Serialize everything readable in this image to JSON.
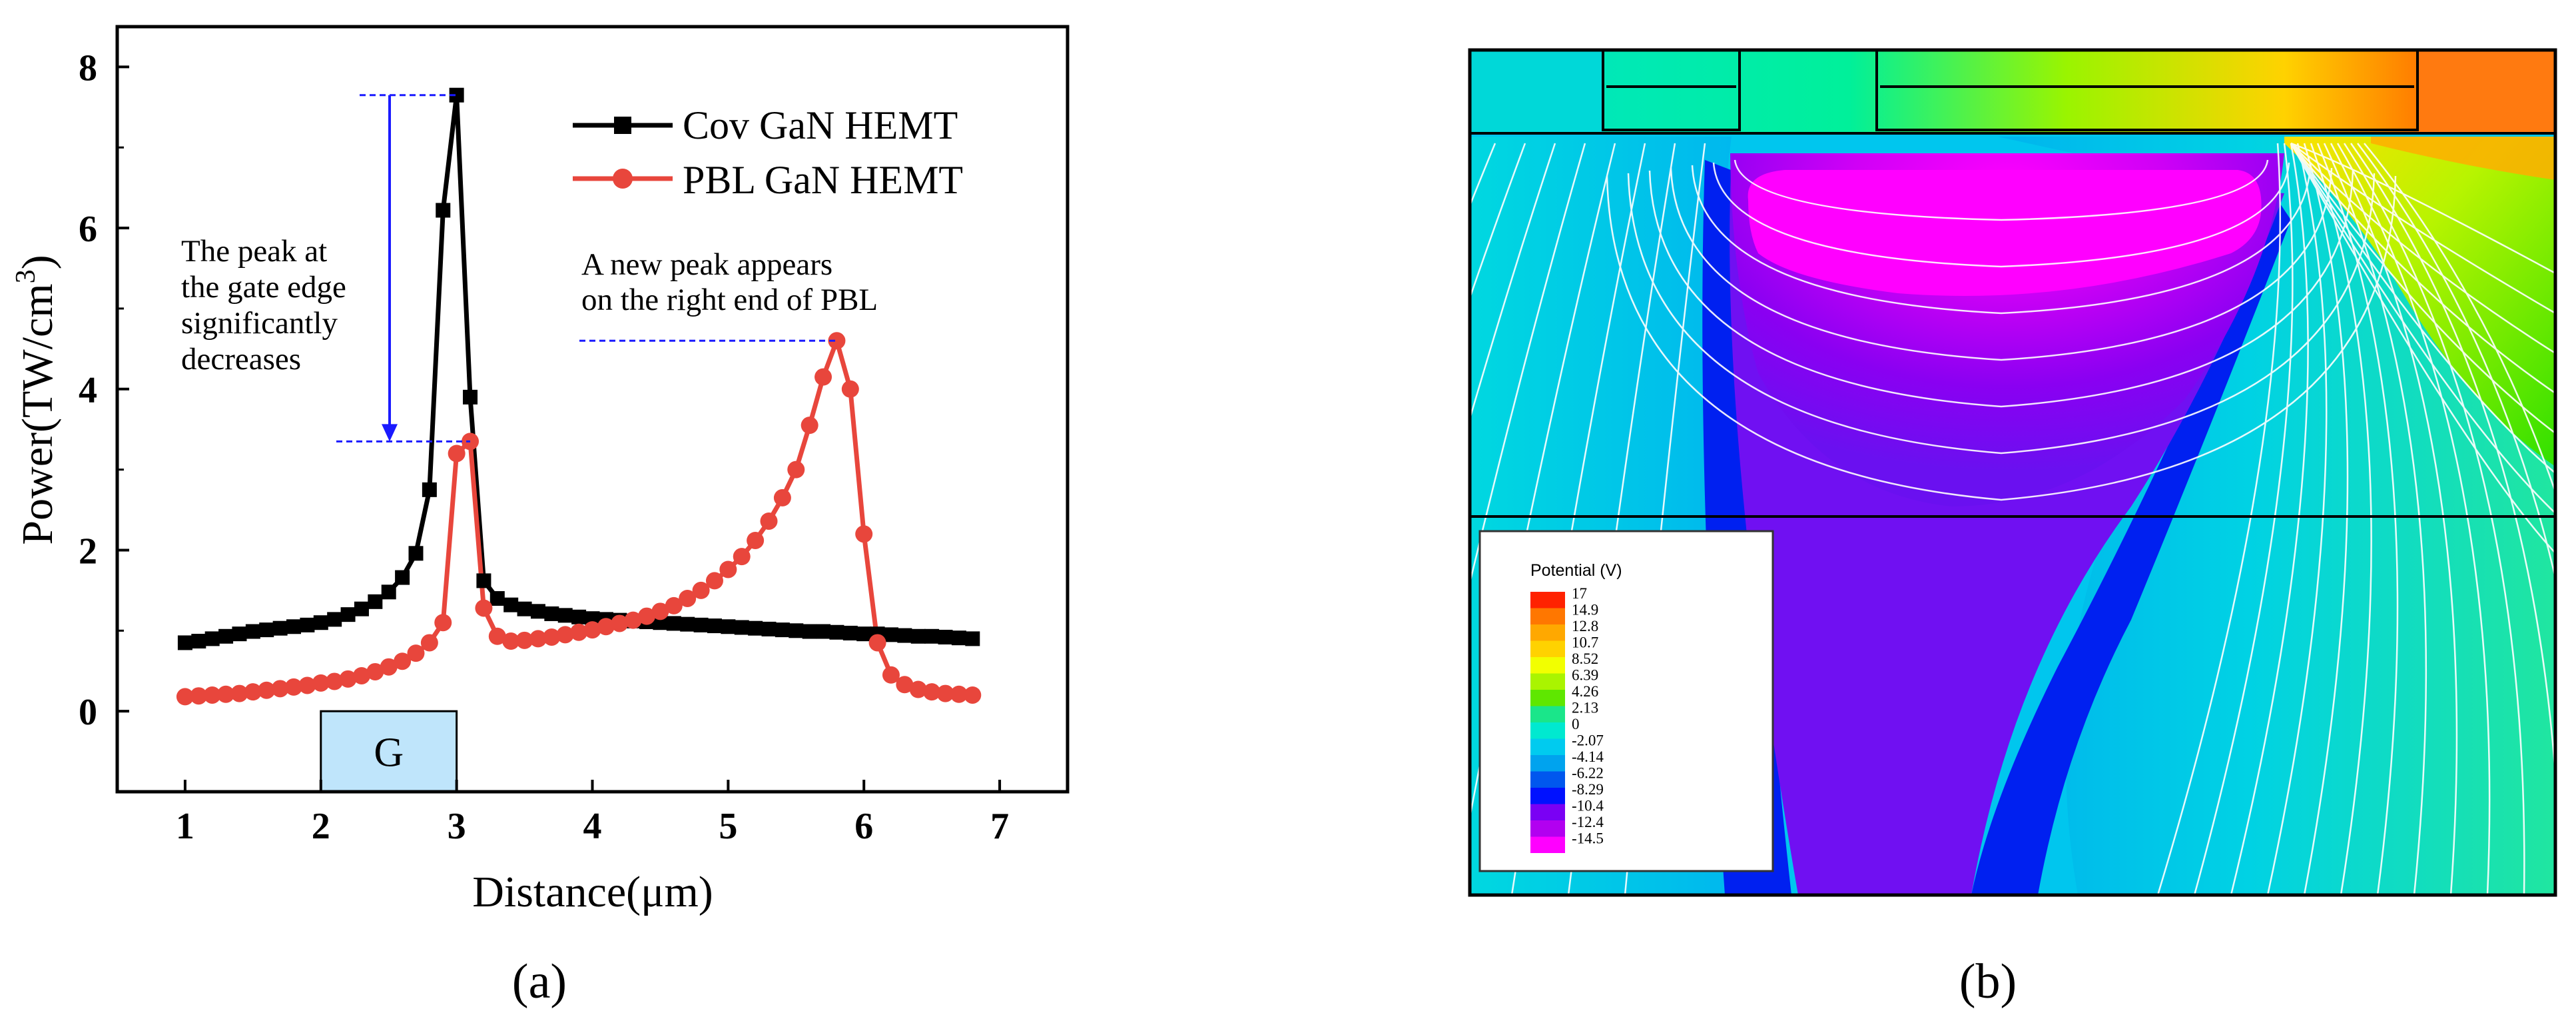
{
  "chart_data": [
    {
      "type": "line",
      "panel_label": "(a)",
      "xlabel": "Distance(μm)",
      "ylabel": "Power(TW/cm³)",
      "ylabel_main": "Power(TW/cm",
      "ylabel_sup": "3",
      "ylabel_close": ")",
      "xlim": [
        0.5,
        7.5
      ],
      "ylim": [
        -1,
        8.5
      ],
      "x_ticks": [
        1,
        2,
        3,
        4,
        5,
        6,
        7
      ],
      "y_ticks": [
        0,
        2,
        4,
        6,
        8
      ],
      "legend_position": "top-right",
      "gate_box": {
        "label": "G",
        "x_start": 2.0,
        "x_end": 3.0,
        "y_bottom": -1.0,
        "y_top": 0.0,
        "fill": "#bfe5fb"
      },
      "series": [
        {
          "name": "Cov GaN HEMT",
          "color": "#000000",
          "marker": "square",
          "x": [
            1.0,
            1.1,
            1.2,
            1.3,
            1.4,
            1.5,
            1.6,
            1.7,
            1.8,
            1.9,
            2.0,
            2.1,
            2.2,
            2.3,
            2.4,
            2.5,
            2.6,
            2.7,
            2.8,
            2.9,
            3.0,
            3.1,
            3.2,
            3.3,
            3.4,
            3.5,
            3.6,
            3.7,
            3.8,
            3.9,
            4.0,
            4.1,
            4.2,
            4.3,
            4.4,
            4.5,
            4.6,
            4.7,
            4.8,
            4.9,
            5.0,
            5.1,
            5.2,
            5.3,
            5.4,
            5.5,
            5.6,
            5.7,
            5.8,
            5.9,
            6.0,
            6.1,
            6.2,
            6.3,
            6.4,
            6.5,
            6.6,
            6.7,
            6.8
          ],
          "values": [
            0.85,
            0.87,
            0.9,
            0.93,
            0.96,
            0.99,
            1.01,
            1.03,
            1.05,
            1.07,
            1.1,
            1.14,
            1.2,
            1.27,
            1.36,
            1.48,
            1.66,
            1.96,
            2.75,
            6.22,
            7.65,
            3.9,
            1.62,
            1.4,
            1.32,
            1.27,
            1.24,
            1.21,
            1.19,
            1.17,
            1.15,
            1.14,
            1.13,
            1.12,
            1.11,
            1.1,
            1.09,
            1.08,
            1.07,
            1.06,
            1.05,
            1.04,
            1.03,
            1.02,
            1.01,
            1.0,
            0.99,
            0.99,
            0.98,
            0.97,
            0.96,
            0.96,
            0.95,
            0.94,
            0.93,
            0.93,
            0.92,
            0.91,
            0.9
          ]
        },
        {
          "name": "PBL GaN HEMT",
          "color": "#e8463c",
          "marker": "circle",
          "x": [
            1.0,
            1.1,
            1.2,
            1.3,
            1.4,
            1.5,
            1.6,
            1.7,
            1.8,
            1.9,
            2.0,
            2.1,
            2.2,
            2.3,
            2.4,
            2.5,
            2.6,
            2.7,
            2.8,
            2.9,
            3.0,
            3.1,
            3.2,
            3.3,
            3.4,
            3.5,
            3.6,
            3.7,
            3.8,
            3.9,
            4.0,
            4.1,
            4.2,
            4.3,
            4.4,
            4.5,
            4.6,
            4.7,
            4.8,
            4.9,
            5.0,
            5.1,
            5.2,
            5.3,
            5.4,
            5.5,
            5.6,
            5.7,
            5.8,
            5.9,
            6.0,
            6.1,
            6.2,
            6.3,
            6.4,
            6.5,
            6.6,
            6.7,
            6.8
          ],
          "values": [
            0.18,
            0.19,
            0.2,
            0.21,
            0.22,
            0.24,
            0.26,
            0.28,
            0.3,
            0.32,
            0.35,
            0.37,
            0.4,
            0.44,
            0.49,
            0.55,
            0.62,
            0.72,
            0.85,
            1.1,
            3.2,
            3.35,
            1.28,
            0.93,
            0.87,
            0.88,
            0.9,
            0.92,
            0.95,
            0.98,
            1.01,
            1.05,
            1.09,
            1.13,
            1.18,
            1.24,
            1.31,
            1.4,
            1.5,
            1.62,
            1.76,
            1.92,
            2.12,
            2.36,
            2.65,
            3.0,
            3.55,
            4.15,
            4.6,
            4.0,
            2.2,
            0.85,
            0.45,
            0.33,
            0.27,
            0.24,
            0.22,
            0.21,
            0.2
          ]
        }
      ],
      "annotations": [
        {
          "lines": [
            "The peak at",
            "the gate edge",
            "significantly",
            "decreases"
          ]
        },
        {
          "lines": [
            "A new peak appears",
            "on the right end of PBL"
          ]
        }
      ]
    },
    {
      "type": "heatmap",
      "panel_label": "(b)",
      "legend_title": "Potential (V)",
      "legend_position": "bottom-left",
      "min": -14.5,
      "max": 17,
      "legend_levels": [
        "17",
        "14.9",
        "12.8",
        "10.7",
        "8.52",
        "6.39",
        "4.26",
        "2.13",
        "0",
        "-2.07",
        "-4.14",
        "-6.22",
        "-8.29",
        "-10.4",
        "-12.4",
        "-14.5"
      ],
      "legend_colors": [
        "#ff2200",
        "#ff7700",
        "#ffa800",
        "#ffd200",
        "#f2ff00",
        "#aaf400",
        "#5fe700",
        "#1ae68a",
        "#00e9d0",
        "#00cbef",
        "#00a3ee",
        "#0057ee",
        "#0011ff",
        "#7a00f4",
        "#b200f0",
        "#ff00ff"
      ]
    }
  ]
}
